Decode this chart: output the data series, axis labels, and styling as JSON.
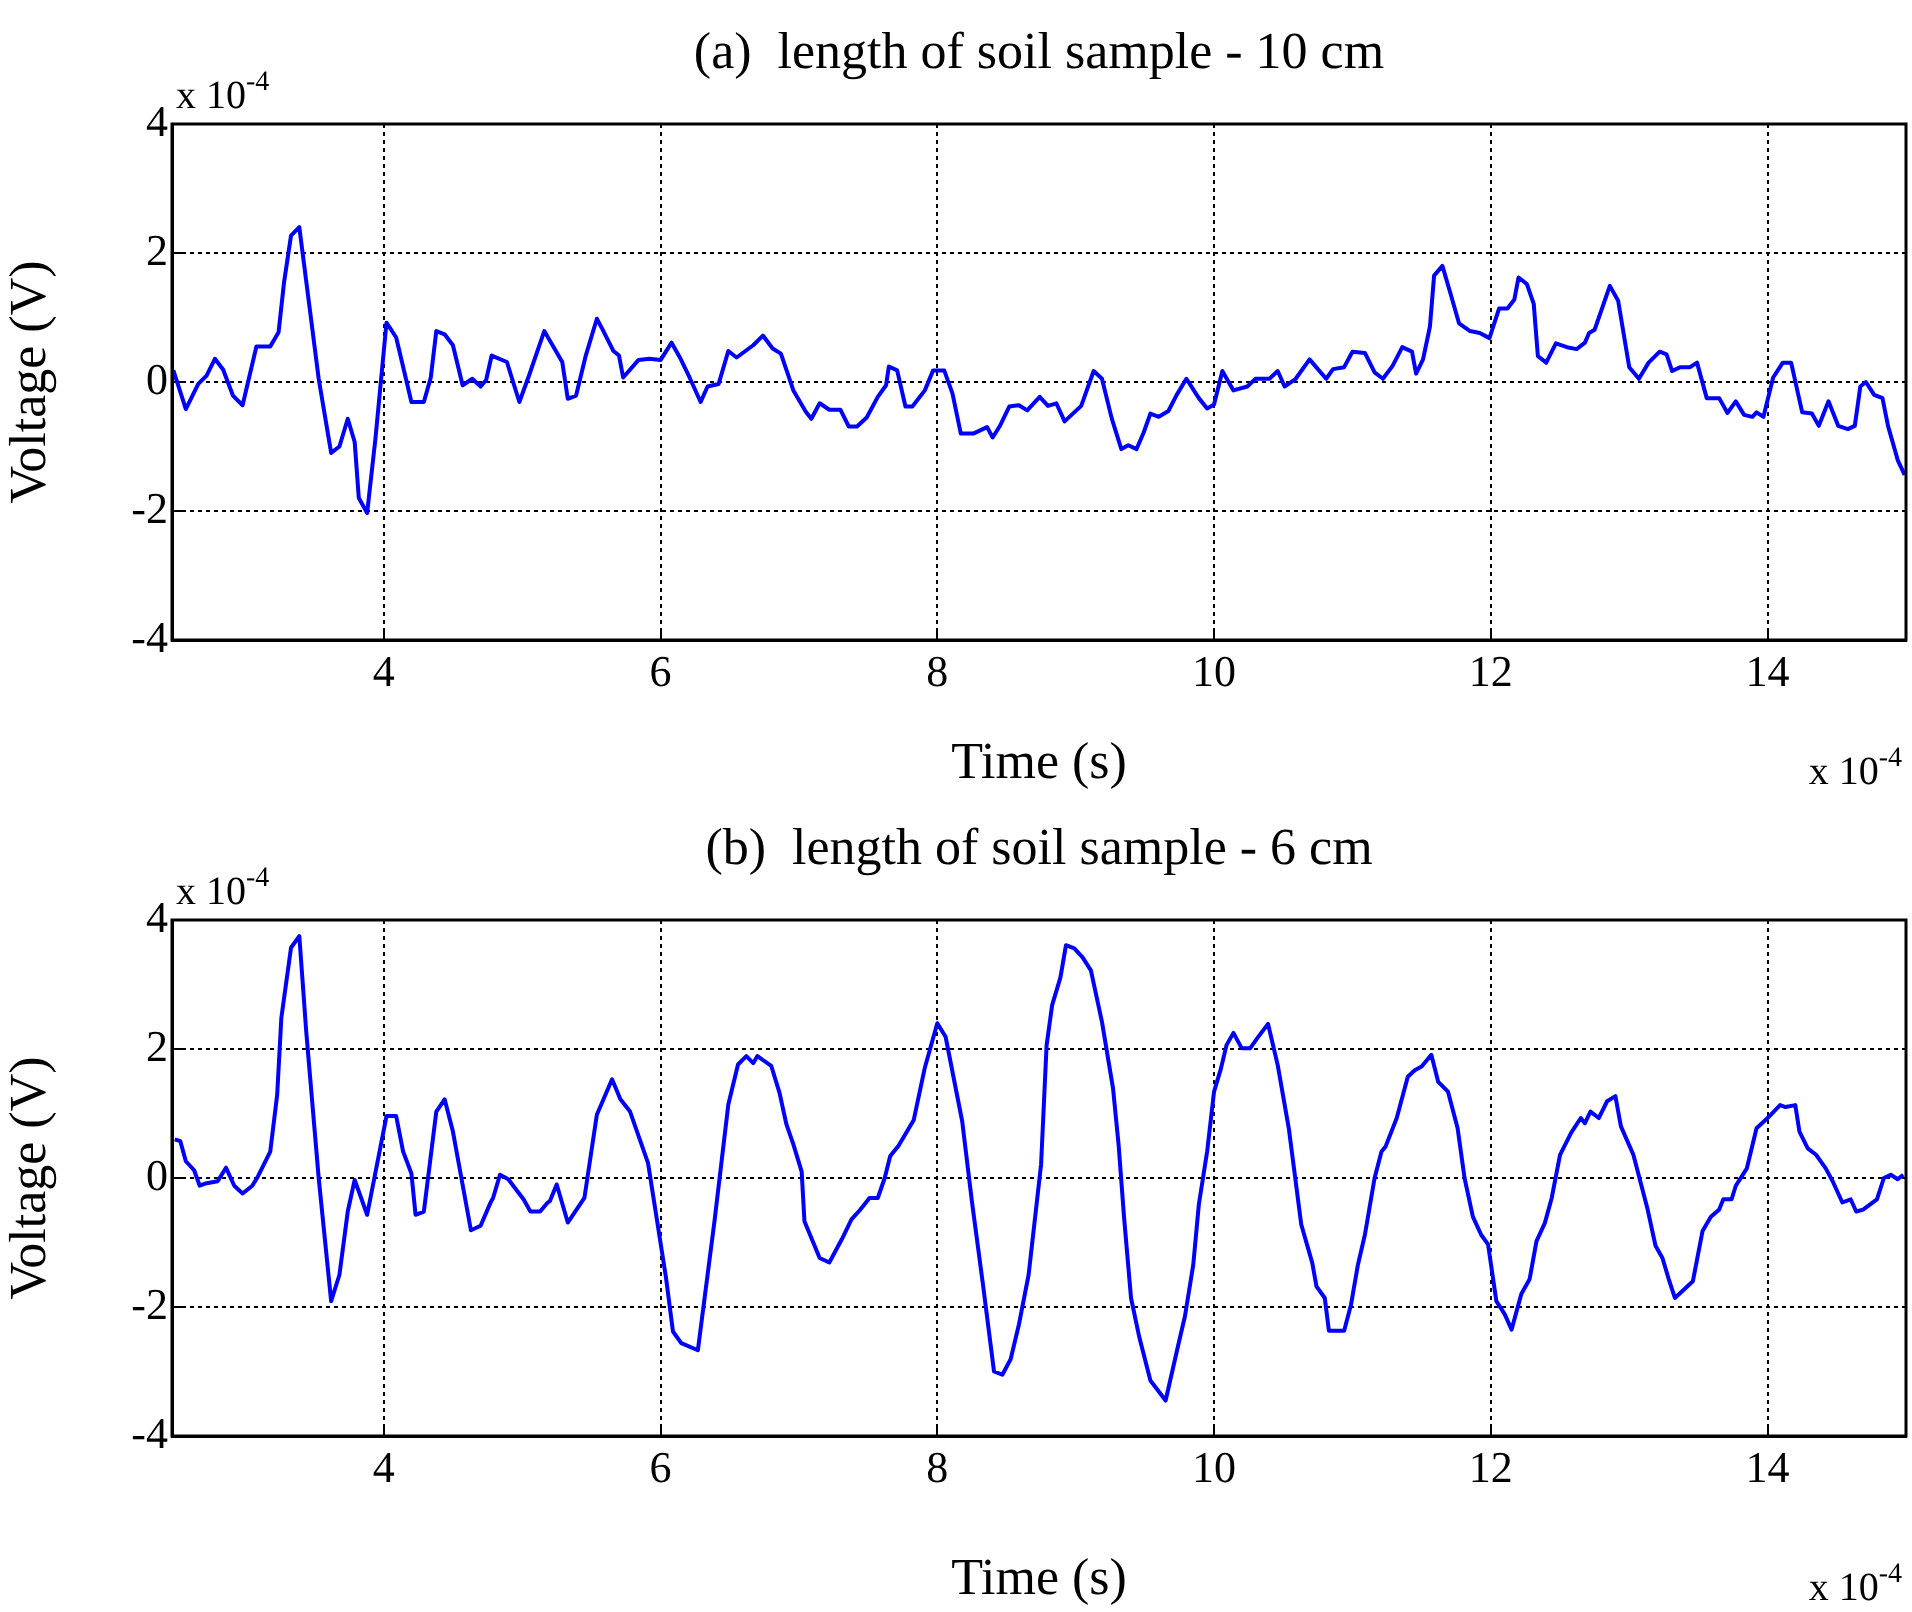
{
  "chart_data": [
    {
      "type": "line",
      "title": "(a)  length of soil sample - 10 cm",
      "xlabel": "Time (s)",
      "ylabel": "Voltage (V)",
      "annotations": [
        "x 10$^{-4}$",
        "x 10$^{-4}$"
      ],
      "color": "#0000ff",
      "marker": "none",
      "grid": true,
      "xlim": [
        2.47,
        15
      ],
      "ylim": [
        -4,
        4
      ],
      "xticks": [
        4,
        6,
        8,
        10,
        12,
        14
      ],
      "yticks": [
        -4,
        -2,
        0,
        2,
        4
      ],
      "x": [
        2.48,
        2.57,
        2.66,
        2.72,
        2.78,
        2.84,
        2.91,
        2.98,
        3.08,
        3.18,
        3.24,
        3.28,
        3.33,
        3.39,
        3.53,
        3.62,
        3.68,
        3.74,
        3.79,
        3.82,
        3.88,
        3.94,
        4.02,
        4.09,
        4.2,
        4.29,
        4.34,
        4.38,
        4.44,
        4.5,
        4.57,
        4.64,
        4.7,
        4.74,
        4.78,
        4.89,
        4.98,
        5.05,
        5.16,
        5.29,
        5.33,
        5.39,
        5.46,
        5.54,
        5.58,
        5.66,
        5.7,
        5.73,
        5.84,
        5.92,
        6.0,
        6.08,
        6.14,
        6.21,
        6.29,
        6.34,
        6.42,
        6.49,
        6.55,
        6.67,
        6.74,
        6.81,
        6.87,
        6.96,
        7.05,
        7.09,
        7.15,
        7.22,
        7.3,
        7.36,
        7.42,
        7.49,
        7.57,
        7.63,
        7.65,
        7.71,
        7.77,
        7.82,
        7.91,
        7.97,
        8.05,
        8.11,
        8.17,
        8.26,
        8.36,
        8.4,
        8.45,
        8.52,
        8.59,
        8.65,
        8.74,
        8.8,
        8.86,
        8.92,
        9.04,
        9.13,
        9.19,
        9.26,
        9.33,
        9.38,
        9.44,
        9.49,
        9.54,
        9.6,
        9.67,
        9.73,
        9.8,
        9.89,
        9.95,
        10.0,
        10.06,
        10.14,
        10.24,
        10.3,
        10.4,
        10.46,
        10.51,
        10.59,
        10.69,
        10.73,
        10.81,
        10.86,
        10.94,
        11.0,
        11.09,
        11.16,
        11.22,
        11.29,
        11.36,
        11.43,
        11.46,
        11.51,
        11.56,
        11.59,
        11.65,
        11.71,
        11.77,
        11.85,
        11.92,
        11.99,
        12.06,
        12.12,
        12.17,
        12.2,
        12.26,
        12.31,
        12.34,
        12.4,
        12.47,
        12.55,
        12.62,
        12.68,
        12.71,
        12.75,
        12.86,
        12.92,
        13.0,
        13.07,
        13.14,
        13.22,
        13.27,
        13.31,
        13.37,
        13.44,
        13.49,
        13.56,
        13.65,
        13.71,
        13.77,
        13.83,
        13.89,
        13.92,
        13.97,
        14.04,
        14.11,
        14.17,
        14.25,
        14.32,
        14.37,
        14.44,
        14.51,
        14.58,
        14.63,
        14.67,
        14.71,
        14.77,
        14.83,
        14.87,
        14.94,
        14.99
      ],
      "values": [
        0.18,
        -0.42,
        -0.03,
        0.1,
        0.36,
        0.19,
        -0.21,
        -0.36,
        0.55,
        0.55,
        0.77,
        1.55,
        2.27,
        2.4,
        0.05,
        -1.1,
        -1.0,
        -0.57,
        -0.93,
        -1.8,
        -2.03,
        -0.88,
        0.92,
        0.69,
        -0.31,
        -0.31,
        0.07,
        0.79,
        0.74,
        0.57,
        -0.05,
        0.05,
        -0.07,
        0.03,
        0.41,
        0.31,
        -0.31,
        0.1,
        0.79,
        0.31,
        -0.26,
        -0.21,
        0.41,
        0.98,
        0.82,
        0.48,
        0.41,
        0.07,
        0.34,
        0.36,
        0.34,
        0.61,
        0.38,
        0.07,
        -0.31,
        -0.07,
        -0.03,
        0.48,
        0.38,
        0.57,
        0.72,
        0.52,
        0.44,
        -0.13,
        -0.46,
        -0.57,
        -0.33,
        -0.43,
        -0.43,
        -0.69,
        -0.69,
        -0.55,
        -0.23,
        -0.05,
        0.24,
        0.18,
        -0.38,
        -0.38,
        -0.13,
        0.18,
        0.18,
        -0.18,
        -0.8,
        -0.8,
        -0.7,
        -0.86,
        -0.69,
        -0.38,
        -0.36,
        -0.44,
        -0.23,
        -0.37,
        -0.33,
        -0.61,
        -0.37,
        0.17,
        0.05,
        -0.56,
        -1.04,
        -0.98,
        -1.04,
        -0.79,
        -0.49,
        -0.54,
        -0.45,
        -0.2,
        0.05,
        -0.25,
        -0.41,
        -0.35,
        0.17,
        -0.13,
        -0.07,
        0.05,
        0.05,
        0.17,
        -0.07,
        0.05,
        0.35,
        0.25,
        0.05,
        0.2,
        0.23,
        0.47,
        0.45,
        0.15,
        0.05,
        0.25,
        0.54,
        0.47,
        0.13,
        0.35,
        0.86,
        1.65,
        1.8,
        1.36,
        0.91,
        0.79,
        0.76,
        0.68,
        1.14,
        1.14,
        1.28,
        1.62,
        1.52,
        1.21,
        0.4,
        0.3,
        0.6,
        0.54,
        0.51,
        0.61,
        0.76,
        0.81,
        1.49,
        1.26,
        0.23,
        0.05,
        0.3,
        0.47,
        0.43,
        0.17,
        0.23,
        0.23,
        0.3,
        -0.25,
        -0.25,
        -0.48,
        -0.3,
        -0.51,
        -0.54,
        -0.47,
        -0.54,
        0.07,
        0.3,
        0.3,
        -0.47,
        -0.49,
        -0.68,
        -0.3,
        -0.68,
        -0.73,
        -0.68,
        -0.07,
        0.0,
        -0.2,
        -0.25,
        -0.68,
        -1.21,
        -1.44
      ]
    },
    {
      "type": "line",
      "title": "(b)  length of soil sample - 6 cm",
      "xlabel": "Time (s)",
      "ylabel": "Voltage (V)",
      "annotations": [
        "x 10$^{-4}$",
        "x 10$^{-4}$"
      ],
      "color": "#0000ff",
      "marker": "none",
      "grid": true,
      "xlim": [
        2.47,
        15
      ],
      "ylim": [
        -4,
        4
      ],
      "xticks": [
        4,
        6,
        8,
        10,
        12,
        14
      ],
      "yticks": [
        -4,
        -2,
        0,
        2,
        4
      ],
      "x": [
        2.49,
        2.53,
        2.57,
        2.63,
        2.67,
        2.72,
        2.8,
        2.86,
        2.92,
        2.98,
        3.05,
        3.09,
        3.18,
        3.23,
        3.26,
        3.33,
        3.39,
        3.44,
        3.53,
        3.62,
        3.68,
        3.74,
        3.79,
        3.88,
        4.02,
        4.09,
        4.14,
        4.2,
        4.23,
        4.29,
        4.38,
        4.44,
        4.5,
        4.63,
        4.7,
        4.77,
        4.79,
        4.84,
        4.9,
        5.01,
        5.06,
        5.13,
        5.18,
        5.2,
        5.25,
        5.33,
        5.45,
        5.54,
        5.65,
        5.71,
        5.78,
        5.91,
        6.04,
        6.09,
        6.15,
        6.27,
        6.39,
        6.49,
        6.56,
        6.62,
        6.67,
        6.7,
        6.8,
        6.86,
        6.91,
        6.96,
        7.02,
        7.04,
        7.15,
        7.22,
        7.31,
        7.38,
        7.44,
        7.51,
        7.57,
        7.62,
        7.66,
        7.72,
        7.83,
        7.91,
        8.0,
        8.06,
        8.18,
        8.25,
        8.33,
        8.41,
        8.47,
        8.53,
        8.59,
        8.66,
        8.75,
        8.79,
        8.83,
        8.89,
        8.93,
        8.99,
        9.05,
        9.11,
        9.19,
        9.27,
        9.31,
        9.35,
        9.4,
        9.46,
        9.54,
        9.65,
        9.74,
        9.79,
        9.85,
        9.89,
        9.95,
        10.0,
        10.05,
        10.09,
        10.14,
        10.2,
        10.26,
        10.31,
        10.39,
        10.46,
        10.54,
        10.63,
        10.71,
        10.74,
        10.8,
        10.83,
        10.94,
        10.99,
        11.04,
        11.09,
        11.16,
        11.21,
        11.24,
        11.32,
        11.4,
        11.45,
        11.5,
        11.57,
        11.62,
        11.69,
        11.76,
        11.81,
        11.87,
        11.93,
        11.98,
        12.04,
        12.1,
        12.15,
        12.22,
        12.28,
        12.33,
        12.39,
        12.44,
        12.5,
        12.58,
        12.65,
        12.68,
        12.72,
        12.78,
        12.84,
        12.9,
        12.94,
        13.03,
        13.13,
        13.19,
        13.24,
        13.29,
        13.33,
        13.46,
        13.53,
        13.59,
        13.65,
        13.68,
        13.74,
        13.77,
        13.85,
        13.92,
        14.0,
        14.09,
        14.13,
        14.2,
        14.23,
        14.29,
        14.35,
        14.42,
        14.47,
        14.54,
        14.6,
        14.64,
        14.69,
        14.79,
        14.84,
        14.89,
        14.94,
        14.98
      ],
      "values": [
        0.6,
        0.57,
        0.26,
        0.12,
        -0.12,
        -0.08,
        -0.05,
        0.16,
        -0.12,
        -0.24,
        -0.12,
        0.02,
        0.41,
        1.29,
        2.48,
        3.57,
        3.75,
        2.27,
        0.0,
        -1.91,
        -1.5,
        -0.52,
        -0.03,
        -0.57,
        0.96,
        0.96,
        0.41,
        0.07,
        -0.57,
        -0.52,
        1.03,
        1.22,
        0.72,
        -0.81,
        -0.74,
        -0.39,
        -0.31,
        0.05,
        -0.02,
        -0.33,
        -0.52,
        -0.52,
        -0.39,
        -0.36,
        -0.1,
        -0.69,
        -0.31,
        0.98,
        1.53,
        1.22,
        1.03,
        0.23,
        -1.55,
        -2.38,
        -2.56,
        -2.67,
        -0.67,
        1.14,
        1.76,
        1.89,
        1.78,
        1.89,
        1.74,
        1.32,
        0.83,
        0.52,
        0.1,
        -0.67,
        -1.24,
        -1.31,
        -0.95,
        -0.64,
        -0.5,
        -0.31,
        -0.31,
        0.0,
        0.34,
        0.5,
        0.9,
        1.71,
        2.4,
        2.19,
        0.88,
        -0.36,
        -1.65,
        -3.0,
        -3.05,
        -2.81,
        -2.27,
        -1.5,
        0.21,
        2.06,
        2.68,
        3.11,
        3.61,
        3.56,
        3.42,
        3.22,
        2.42,
        1.39,
        0.52,
        -0.62,
        -1.86,
        -2.47,
        -3.14,
        -3.45,
        -2.6,
        -2.14,
        -1.34,
        -0.41,
        0.41,
        1.34,
        1.7,
        2.06,
        2.25,
        2.01,
        2.01,
        2.16,
        2.39,
        1.75,
        0.77,
        -0.72,
        -1.32,
        -1.68,
        -1.86,
        -2.37,
        -2.37,
        -1.96,
        -1.34,
        -0.88,
        0.0,
        0.41,
        0.49,
        0.93,
        1.57,
        1.67,
        1.73,
        1.91,
        1.49,
        1.34,
        0.77,
        0.0,
        -0.6,
        -0.88,
        -1.03,
        -1.91,
        -2.11,
        -2.35,
        -1.8,
        -1.57,
        -0.98,
        -0.7,
        -0.31,
        0.36,
        0.7,
        0.93,
        0.85,
        1.03,
        0.93,
        1.19,
        1.27,
        0.8,
        0.36,
        -0.46,
        -1.05,
        -1.24,
        -1.6,
        -1.86,
        -1.6,
        -0.82,
        -0.6,
        -0.49,
        -0.33,
        -0.33,
        -0.12,
        0.15,
        0.77,
        0.93,
        1.13,
        1.1,
        1.13,
        0.72,
        0.46,
        0.36,
        0.15,
        -0.05,
        -0.38,
        -0.33,
        -0.52,
        -0.49,
        -0.33,
        0.0,
        0.05,
        -0.02,
        0.05
      ]
    }
  ]
}
